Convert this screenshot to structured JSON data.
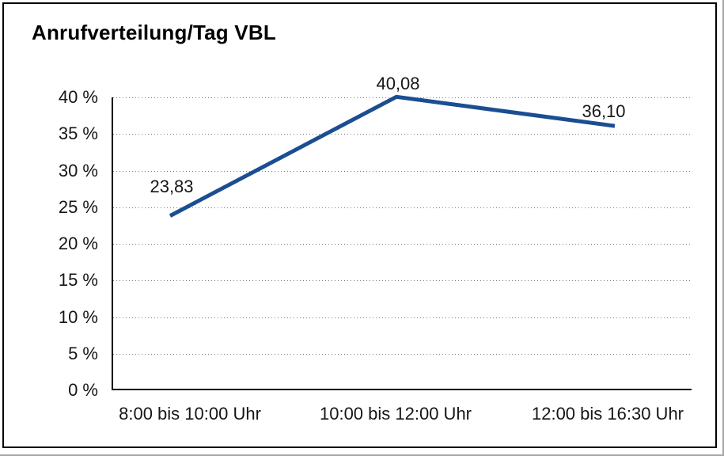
{
  "chart_data": {
    "type": "line",
    "title": "Anrufverteilung/Tag VBL",
    "categories": [
      "8:00 bis 10:00 Uhr",
      "10:00 bis 12:00 Uhr",
      "12:00 bis 16:30 Uhr"
    ],
    "values": [
      23.83,
      40.08,
      36.1
    ],
    "value_labels": [
      "23,83",
      "40,08",
      "36,10"
    ],
    "xlabel": "",
    "ylabel": "",
    "ylim": [
      0,
      40
    ],
    "ytick_step": 5,
    "ytick_labels": [
      "0 %",
      "5 %",
      "10 %",
      "15 %",
      "20 %",
      "25 %",
      "30 %",
      "35 %",
      "40 %"
    ],
    "grid": "horizontal-dotted",
    "legend": "none",
    "line_color": "#1b4e91",
    "axis_color": "#000000",
    "text_color": "#161616"
  }
}
